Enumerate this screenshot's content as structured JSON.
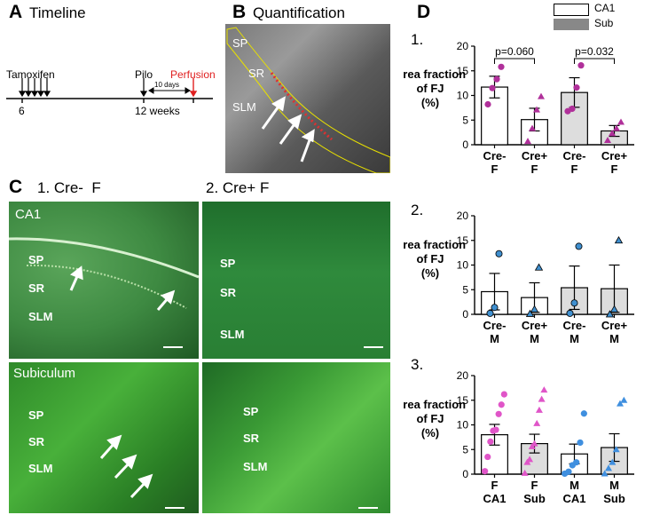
{
  "panelA": {
    "letter": "A",
    "title": "Timeline",
    "tamoxifen": "Tamoxifen",
    "pilo": "Pilo",
    "perfusion": "Perfusion",
    "interval": "10 days",
    "tick_6": "6",
    "tick_12": "12 weeks",
    "perfusion_color": "#e02020"
  },
  "panelB": {
    "letter": "B",
    "title": "Quantification",
    "labels": [
      "SP",
      "SR",
      "SLM"
    ]
  },
  "panelC": {
    "letter": "C",
    "col1": "1. Cre-  F",
    "col2": "2. Cre+ F",
    "ca1_title": "CA1",
    "sub_title": "Subiculum",
    "labels": [
      "SP",
      "SR",
      "SLM"
    ]
  },
  "panelD": {
    "letter": "D",
    "legend": [
      {
        "name": "CA1",
        "color": "#ffffff"
      },
      {
        "name": "Sub",
        "color": "#888888"
      }
    ]
  },
  "chart_data": [
    {
      "type": "bar",
      "panel": "1.",
      "ylabel": "Area fraction of FJ (%)",
      "ylim": [
        0,
        20
      ],
      "yticks": [
        0,
        5,
        10,
        15,
        20
      ],
      "categories": [
        "Cre- F",
        "Cre+ F",
        "Cre- F",
        "Cre+ F"
      ],
      "fills": [
        "#ffffff",
        "#ffffff",
        "#dddddd",
        "#dddddd"
      ],
      "means": [
        11.7,
        5.1,
        10.6,
        2.8
      ],
      "sem": [
        2.2,
        2.3,
        3.0,
        1.1
      ],
      "points": [
        [
          8.2,
          11.5,
          13.3,
          15.8
        ],
        [
          0.7,
          3.3,
          7.1,
          9.8
        ],
        [
          6.8,
          7.3,
          11.6,
          16.1
        ],
        [
          0.9,
          2.3,
          3.3,
          4.6
        ]
      ],
      "markers": [
        "circle",
        "triangle",
        "circle",
        "triangle"
      ],
      "point_color": "#b0309a",
      "annotations": [
        {
          "text": "p=0.060",
          "from": 0,
          "to": 1
        },
        {
          "text": "p=0.032",
          "from": 2,
          "to": 3
        }
      ]
    },
    {
      "type": "bar",
      "panel": "2.",
      "ylabel": "Area fraction of FJ (%)",
      "ylim": [
        0,
        20
      ],
      "yticks": [
        0,
        5,
        10,
        15,
        20
      ],
      "categories": [
        "Cre- M",
        "Cre+ M",
        "Cre- M",
        "Cre+ M"
      ],
      "fills": [
        "#ffffff",
        "#ffffff",
        "#dddddd",
        "#dddddd"
      ],
      "means": [
        4.6,
        3.4,
        5.4,
        5.2
      ],
      "sem": [
        3.7,
        3.0,
        4.4,
        4.8
      ],
      "points": [
        [
          0.2,
          1.4,
          12.3
        ],
        [
          0.1,
          1.0,
          9.5
        ],
        [
          0.2,
          2.3,
          13.8
        ],
        [
          0.0,
          1.0,
          15.0
        ]
      ],
      "markers": [
        "circle",
        "triangle",
        "circle",
        "triangle"
      ],
      "point_color": "#3f8fcf"
    },
    {
      "type": "bar",
      "panel": "3.",
      "ylabel": "Area fraction of FJ (%)",
      "ylim": [
        0,
        20
      ],
      "yticks": [
        0,
        5,
        10,
        15,
        20
      ],
      "categories": [
        "F CA1",
        "F Sub",
        "M CA1",
        "M Sub"
      ],
      "fills": [
        "#ffffff",
        "#dddddd",
        "#ffffff",
        "#dddddd"
      ],
      "means": [
        8.0,
        6.2,
        4.1,
        5.4
      ],
      "sem": [
        2.1,
        1.9,
        2.0,
        2.8
      ],
      "points": [
        [
          0.6,
          3.5,
          6.6,
          8.8,
          9.0,
          12.2,
          14.1,
          16.2
        ],
        [
          0.2,
          2.4,
          3.0,
          5.6,
          6.2,
          10.3,
          13.0,
          15.2,
          17.1
        ],
        [
          0.1,
          0.5,
          1.8,
          2.4,
          6.4,
          12.3
        ],
        [
          0.1,
          1.2,
          2.4,
          5.0,
          14.3,
          15.0
        ]
      ],
      "markers": [
        "circle",
        "triangle",
        "circle",
        "triangle"
      ],
      "point_colors": [
        "#e055c8",
        "#e055c8",
        "#3f8fdf",
        "#3f8fdf"
      ]
    }
  ]
}
